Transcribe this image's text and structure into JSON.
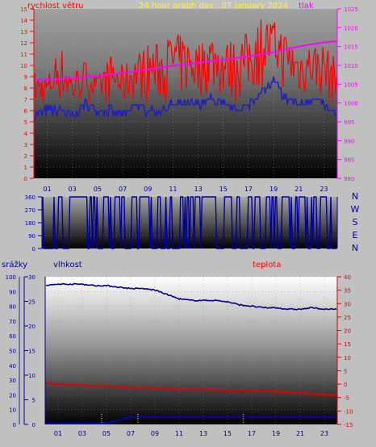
{
  "header": {
    "title": "24 hour graph day : 07 January 2024",
    "wind_label": "rychlost větru",
    "pressure_label": "tlak"
  },
  "direction_labels": [
    "N",
    "W",
    "S",
    "E",
    "N"
  ],
  "lower_labels": {
    "rain": "srážky",
    "humidity": "vlhkost",
    "temperature": "teplota"
  },
  "colors": {
    "wind": "#ff0000",
    "gust_base": "#2020c0",
    "pressure": "#ff00ff",
    "direction": "#0000a0",
    "humidity": "#00008b",
    "temperature": "#e00000",
    "rain": "#c0a000",
    "title": "#ffff00",
    "red_label": "#ff0000",
    "blue_label": "#00008b"
  },
  "chart_data": [
    {
      "type": "line",
      "title": "24 hour graph day : 07 January 2024",
      "ylabel": "rychlost větru",
      "y2label": "tlak",
      "ylim": [
        0,
        15
      ],
      "y2lim": [
        980,
        1025
      ],
      "yticks": [
        "0",
        "1",
        "2",
        "3",
        "4",
        "5",
        "6",
        "7",
        "8",
        "9",
        "10",
        "11",
        "12",
        "13",
        "14",
        "15"
      ],
      "y2ticks": [
        "980",
        "985",
        "990",
        "995",
        "1000",
        "1005",
        "1010",
        "1015",
        "1020",
        "1025"
      ],
      "xticks": [
        "01",
        "03",
        "05",
        "07",
        "09",
        "11",
        "13",
        "15",
        "17",
        "19",
        "21",
        "23"
      ],
      "series": [
        {
          "name": "wind gust",
          "x": [
            0,
            1,
            2,
            3,
            4,
            5,
            6,
            7,
            8,
            9,
            10,
            11,
            12,
            13,
            14,
            15,
            16,
            17,
            18,
            19,
            20,
            21,
            22,
            23,
            24
          ],
          "values": [
            9.5,
            9,
            12,
            9.5,
            10.5,
            9,
            11,
            10,
            11,
            12,
            12,
            13,
            12.5,
            12,
            13,
            12,
            12.5,
            13,
            14.5,
            14,
            13,
            11.5,
            12,
            12,
            10.5
          ]
        },
        {
          "name": "wind average",
          "x": [
            0,
            1,
            2,
            3,
            4,
            5,
            6,
            7,
            8,
            9,
            10,
            11,
            12,
            13,
            14,
            15,
            16,
            17,
            18,
            19,
            20,
            21,
            22,
            23,
            24
          ],
          "values": [
            5.5,
            6,
            6,
            5.5,
            6.5,
            6,
            6,
            5.5,
            6.5,
            6,
            6,
            6.5,
            6.5,
            6.5,
            7,
            6.5,
            6,
            6.5,
            7.5,
            8.5,
            7,
            6.5,
            7,
            6.5,
            5.5
          ]
        },
        {
          "name": "pressure",
          "x": [
            0,
            1,
            2,
            3,
            4,
            5,
            6,
            7,
            8,
            9,
            10,
            11,
            12,
            13,
            14,
            15,
            16,
            17,
            18,
            19,
            20,
            21,
            22,
            23,
            24
          ],
          "values": [
            1006,
            1006.2,
            1006.4,
            1006.6,
            1006.9,
            1007.2,
            1007.6,
            1008,
            1008.4,
            1008.9,
            1009.4,
            1009.9,
            1010.3,
            1010.7,
            1011.1,
            1011.5,
            1011.9,
            1012.4,
            1012.9,
            1013.5,
            1014.2,
            1015,
            1015.6,
            1016.1,
            1016.4
          ]
        }
      ]
    },
    {
      "type": "line",
      "ylim": [
        0,
        360
      ],
      "yticks": [
        "0",
        "90",
        "180",
        "270",
        "360"
      ],
      "series": [
        {
          "name": "direction",
          "values": [
            360,
            0,
            360,
            0,
            360,
            0,
            360,
            0,
            360,
            0,
            360,
            0,
            360,
            0,
            360,
            0,
            360,
            0,
            360,
            0,
            360,
            0,
            360,
            0
          ]
        }
      ]
    },
    {
      "type": "line",
      "ylim": [
        0,
        100
      ],
      "y2lim": [
        -15,
        40
      ],
      "yticks": [
        "0",
        "10",
        "20",
        "30",
        "40",
        "50",
        "60",
        "70",
        "80",
        "90",
        "100"
      ],
      "humidity_ticks": [
        "0",
        "5",
        "10",
        "15",
        "20",
        "25",
        "30"
      ],
      "y2ticks": [
        "-15",
        "-10",
        "-5",
        "0",
        "5",
        "10",
        "15",
        "20",
        "25",
        "30",
        "35",
        "40"
      ],
      "xticks": [
        "01",
        "03",
        "05",
        "07",
        "09",
        "11",
        "13",
        "15",
        "17",
        "19",
        "21",
        "23"
      ],
      "series": [
        {
          "name": "vlhkost",
          "x": [
            0,
            1,
            2,
            3,
            4,
            5,
            6,
            7,
            8,
            9,
            10,
            11,
            12,
            13,
            14,
            15,
            16,
            17,
            18,
            19,
            20,
            21,
            22,
            23,
            24
          ],
          "values": [
            94,
            95,
            95,
            95,
            94,
            94,
            93,
            92,
            92,
            91,
            88,
            85,
            84,
            84,
            84,
            83,
            81,
            80,
            79,
            79,
            78,
            78,
            79,
            78,
            78
          ]
        },
        {
          "name": "teplota",
          "x": [
            0,
            1,
            2,
            3,
            4,
            5,
            6,
            7,
            8,
            9,
            10,
            11,
            12,
            13,
            14,
            15,
            16,
            17,
            18,
            19,
            20,
            21,
            22,
            23,
            24
          ],
          "values": [
            0.5,
            0,
            -0.2,
            -0.4,
            -0.6,
            -0.8,
            -1,
            -1.2,
            -1.4,
            -1.6,
            -1.7,
            -1.8,
            -2,
            -2.1,
            -2.2,
            -2.3,
            -2.4,
            -2.5,
            -2.6,
            -2.8,
            -3,
            -3.3,
            -3.6,
            -3.9,
            -4.1
          ]
        },
        {
          "name": "srážky",
          "x": [
            0,
            1,
            2,
            3,
            4,
            5,
            6,
            7,
            8,
            9,
            10,
            11,
            12,
            13,
            14,
            15,
            16,
            17,
            18,
            19,
            20,
            21,
            22,
            23,
            24
          ],
          "values": [
            1,
            1,
            1,
            1,
            1,
            1,
            3,
            5,
            5,
            5,
            5,
            5,
            5,
            5,
            5,
            5,
            5,
            5,
            5,
            5,
            5,
            5,
            5,
            5,
            5
          ]
        }
      ]
    }
  ]
}
